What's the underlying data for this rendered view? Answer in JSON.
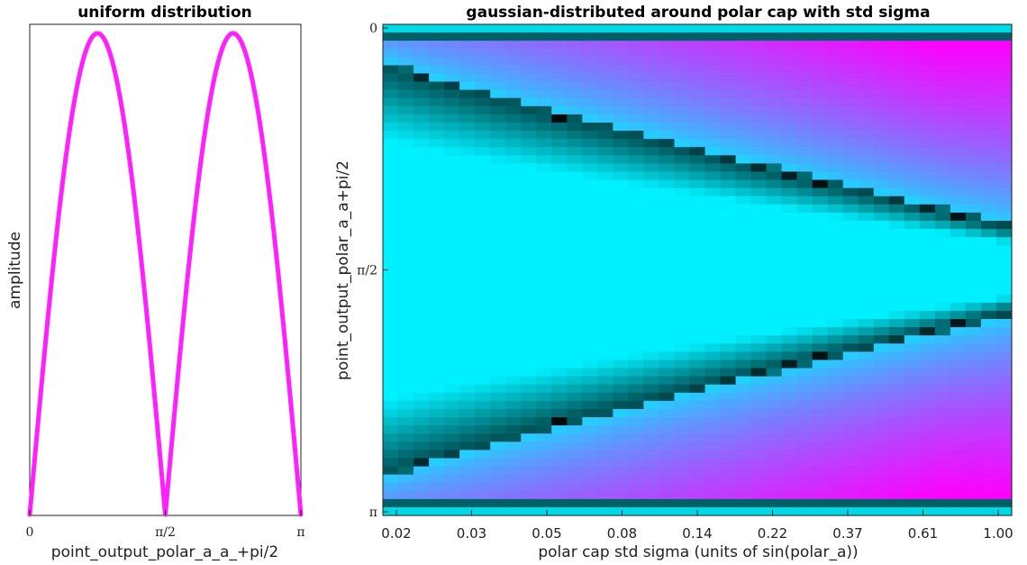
{
  "colors": {
    "curve": "#ff20ff",
    "cmap_low": "#000000",
    "cmap_mid": "#00f0ff",
    "cmap_high": "#ff00ff",
    "axis": "#222222"
  },
  "chart_data": [
    {
      "type": "line",
      "title": "uniform distribution",
      "xlabel": "point_output_polar_a_a_+pi/2",
      "ylabel": "amplitude",
      "xlim": [
        0,
        3.14159
      ],
      "xticks": [
        {
          "value": 0,
          "label": "0"
        },
        {
          "value": 1.5708,
          "label": "π/2"
        },
        {
          "value": 3.14159,
          "label": "π"
        }
      ],
      "function": "|sin(2x)|",
      "series": [
        {
          "x": [
            0,
            0.2,
            0.4,
            0.6,
            0.785,
            1.0,
            1.2,
            1.4,
            1.5708,
            1.75,
            1.95,
            2.15,
            2.356,
            2.55,
            2.75,
            2.95,
            3.14159
          ],
          "values": [
            0,
            0.389,
            0.717,
            0.932,
            1.0,
            0.909,
            0.675,
            0.335,
            0,
            0.351,
            0.688,
            0.917,
            1.0,
            0.926,
            0.706,
            0.375,
            0
          ]
        }
      ],
      "grid": false
    },
    {
      "type": "heatmap",
      "title": "gaussian-distributed around polar cap with std sigma",
      "xlabel": "polar cap std sigma (units of sin(polar_a))",
      "ylabel": "point_output_polar_a_a+pi/2",
      "xticks": [
        "0.02",
        "0.03",
        "0.05",
        "0.08",
        "0.14",
        "0.22",
        "0.37",
        "0.61",
        "1.00"
      ],
      "yticks": [
        {
          "label": "0",
          "fraction": 0
        },
        {
          "label": "π/2",
          "fraction": 0.5
        },
        {
          "label": "π",
          "fraction": 1
        }
      ],
      "columns": 41,
      "rows": 60,
      "sigma_range": [
        0.02,
        1.0
      ],
      "dark_band_start_fraction": 0.09,
      "dark_band_end_fraction": 0.415,
      "colormap": [
        "#000000",
        "#00f0ff",
        "#ff00ff"
      ],
      "grid": false
    }
  ]
}
